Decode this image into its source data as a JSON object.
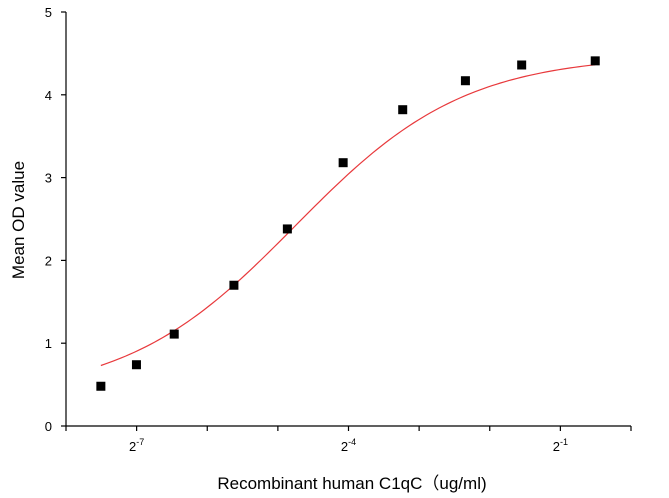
{
  "chart_data": {
    "type": "scatter",
    "xlabel": "Recombinant human C1qC（ug/ml)",
    "ylabel": "Mean OD value",
    "x_scale": "log2",
    "xlim": [
      0.00390625,
      1.0
    ],
    "ylim": [
      0,
      5
    ],
    "y_ticks": [
      0,
      1,
      2,
      3,
      4,
      5
    ],
    "x_tick_labels": [
      {
        "base": "2",
        "exp": "-7",
        "value": 0.0078125
      },
      {
        "base": "2",
        "exp": "-4",
        "value": 0.0625
      },
      {
        "base": "2",
        "exp": "-1",
        "value": 0.5
      }
    ],
    "grid": false,
    "colors": {
      "curve": "#e8393c",
      "points": "#000000"
    },
    "series": [
      {
        "marker": "square",
        "x": [
          0.0055,
          0.0078,
          0.0113,
          0.0203,
          0.0343,
          0.0593,
          0.1064,
          0.1969,
          0.342,
          0.704
        ],
        "y": [
          0.48,
          0.74,
          1.11,
          1.7,
          2.38,
          3.18,
          3.82,
          4.17,
          4.36,
          4.41
        ]
      }
    ],
    "fit": {
      "type": "4PL",
      "bottom": 0.35,
      "top": 4.48,
      "ec50": 0.037,
      "hill": 1.2
    }
  }
}
